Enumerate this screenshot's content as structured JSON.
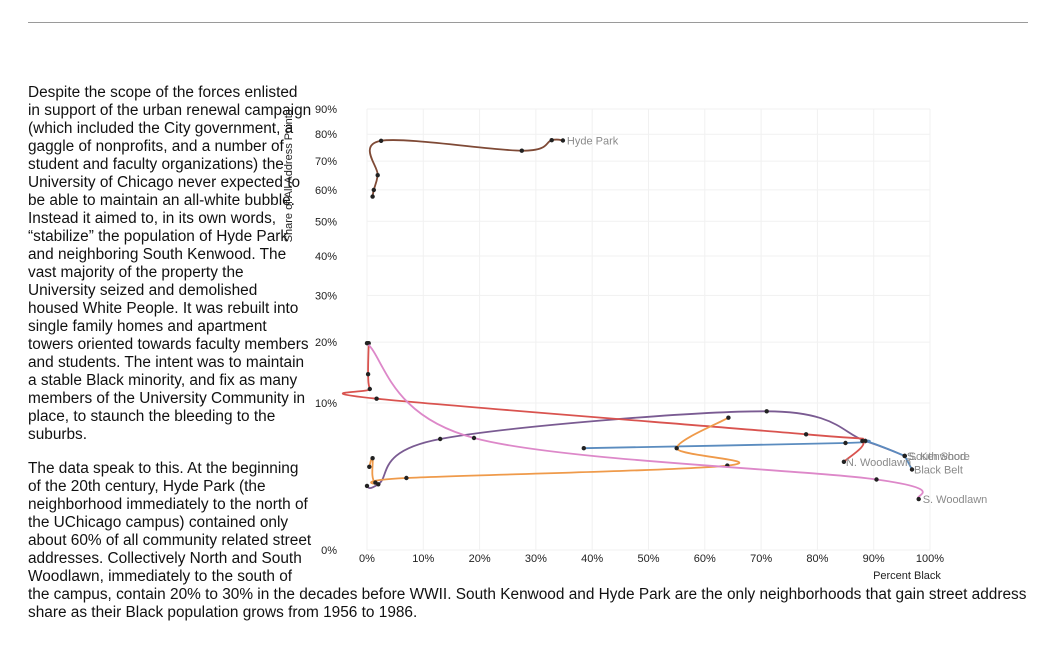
{
  "article": {
    "paragraphs": [
      "Despite the scope of the forces enlisted in support of the urban renewal campaign (which included the City government, a gaggle of nonprofits, and a number of student and faculty organizations) the University of Chicago never expected to be able to maintain an all-white bubble. Instead it aimed to, in its own words, “stabilize” the population of Hyde Park and neighboring South Kenwood. The vast majority of the property the University seized and demolished housed White People. It was rebuilt into single family homes and apartment towers oriented towards faculty members and students. The intent was to maintain a stable Black minority, and fix as many members of the University Community in place, to staunch the bleeding to the suburbs.",
      "The data speak to this. At the beginning of the 20th century, Hyde Park (the neighborhood immediately to the north of the UChicago campus) contained only about 60% of all community related street addresses. Collectively North and South Woodlawn, immediately to the south of the campus, contain 20% to 30% in the decades before WWII. South Kenwood and Hyde Park are the only neighborhoods that gain street address share as their Black population grows from 1956 to 1986."
    ]
  },
  "chart_data": {
    "type": "line",
    "xlabel": "Percent Black",
    "ylabel": "Share of All Address Points",
    "x_ticks": [
      "0%",
      "10%",
      "20%",
      "30%",
      "40%",
      "50%",
      "60%",
      "70%",
      "80%",
      "90%",
      "100%"
    ],
    "y_ticks": [
      "0%",
      "10%",
      "20%",
      "30%",
      "40%",
      "50%",
      "60%",
      "70%",
      "80%",
      "90%"
    ],
    "xlim": [
      0,
      100
    ],
    "ylim": [
      0,
      90
    ],
    "y_scale": "sqrt",
    "grid": true,
    "series": [
      {
        "name": "Hyde Park",
        "color": "#7f4a36",
        "label_dx": 4,
        "x": [
          1.0,
          1.2,
          1.9,
          2.5,
          27.5,
          32.8,
          34.8
        ],
        "y": [
          57.8,
          60.0,
          65.0,
          77.5,
          73.8,
          77.7,
          77.6
        ]
      },
      {
        "name": "S. Kenwood",
        "color": "#7a5b92",
        "label_dx": 2,
        "x": [
          0.0,
          2.0,
          13.0,
          71.0,
          88.5,
          95.5
        ],
        "y": [
          1.9,
          2.0,
          5.7,
          8.9,
          5.5,
          4.1
        ]
      },
      {
        "name": "South Shore",
        "color": "#5b8cbf",
        "label_dx": 4,
        "x": [
          38.5,
          85.0,
          88.5,
          95.5
        ],
        "y": [
          4.8,
          5.3,
          5.5,
          4.1
        ]
      },
      {
        "name": "Black Belt",
        "color": "#5b8cbf",
        "label_dx": 2,
        "x": [
          95.5,
          96.8
        ],
        "y": [
          4.1,
          3.0
        ]
      },
      {
        "name": "N. Woodlawn",
        "color": "#d9534f",
        "label_dx": 2,
        "x": [
          0.3,
          0.2,
          0.5,
          1.7,
          78.0,
          88.0,
          84.7
        ],
        "y": [
          19.8,
          14.3,
          12.0,
          10.6,
          6.2,
          5.5,
          3.6
        ]
      },
      {
        "name": "",
        "color": "#ef9a4a",
        "label_dx": 0,
        "x": [
          0.4,
          1.0,
          1.5,
          7.0,
          64.0,
          55.0,
          64.2
        ],
        "y": [
          3.2,
          3.9,
          2.1,
          2.4,
          3.3,
          4.8,
          8.1
        ]
      },
      {
        "name": "S. Woodlawn",
        "color": "#dd88c9",
        "label_dx": 4,
        "x": [
          0.0,
          19.0,
          90.5,
          98.0
        ],
        "y": [
          19.8,
          5.8,
          2.3,
          1.2
        ]
      }
    ]
  }
}
